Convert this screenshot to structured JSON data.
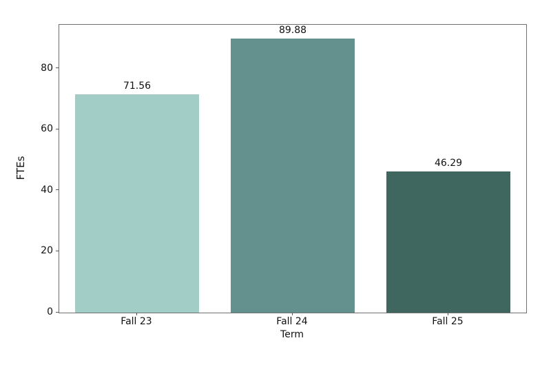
{
  "chart_data": {
    "type": "bar",
    "title": "",
    "xlabel": "Term",
    "ylabel": "FTEs",
    "categories": [
      "Fall 23",
      "Fall 24",
      "Fall 25"
    ],
    "values": [
      71.56,
      89.88,
      46.29
    ],
    "bar_labels": [
      "71.56",
      "89.88",
      "46.29"
    ],
    "bar_colors": [
      "#a2ccc6",
      "#64918e",
      "#40675f"
    ],
    "ylim": [
      0,
      94.46
    ],
    "yticks": [
      0,
      20,
      40,
      60,
      80
    ],
    "grid": false,
    "legend": null,
    "bar_width_fraction": 0.8,
    "colors": {
      "spine": "#6e6e6e",
      "text": "#111111",
      "background": "#ffffff"
    }
  }
}
